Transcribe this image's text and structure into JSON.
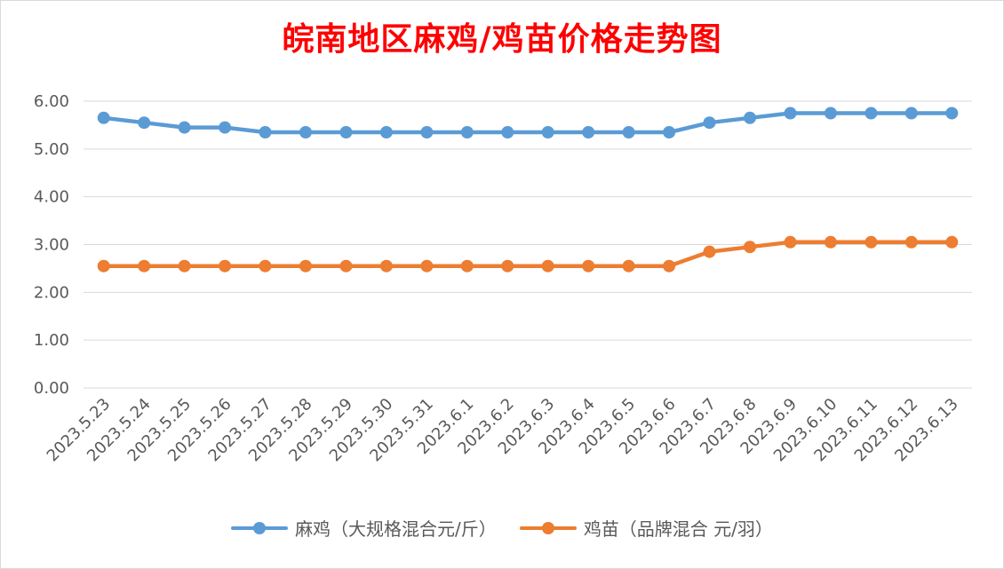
{
  "colors": {
    "series_1": "#5b9bd5",
    "series_2": "#ed7d31",
    "title": "#ff0000",
    "grid": "#d9d9d9",
    "text": "#595959"
  },
  "chart_data": {
    "type": "line",
    "title": "皖南地区麻鸡/鸡苗价格走势图",
    "xlabel": "",
    "ylabel": "",
    "ylim": [
      0,
      6
    ],
    "yticks": [
      "0.00",
      "1.00",
      "2.00",
      "3.00",
      "4.00",
      "5.00",
      "6.00"
    ],
    "grid": true,
    "legend_position": "bottom",
    "categories": [
      "2023.5.23",
      "2023.5.24",
      "2023.5.25",
      "2023.5.26",
      "2023.5.27",
      "2023.5.28",
      "2023.5.29",
      "2023.5.30",
      "2023.5.31",
      "2023.6.1",
      "2023.6.2",
      "2023.6.3",
      "2023.6.4",
      "2023.6.5",
      "2023.6.6",
      "2023.6.7",
      "2023.6.8",
      "2023.6.9",
      "2023.6.10",
      "2023.6.11",
      "2023.6.12",
      "2023.6.13"
    ],
    "series": [
      {
        "name": "麻鸡（大规格混合元/斤）",
        "values": [
          5.65,
          5.55,
          5.45,
          5.45,
          5.35,
          5.35,
          5.35,
          5.35,
          5.35,
          5.35,
          5.35,
          5.35,
          5.35,
          5.35,
          5.35,
          5.55,
          5.65,
          5.75,
          5.75,
          5.75,
          5.75,
          5.75
        ]
      },
      {
        "name": "鸡苗（品牌混合 元/羽）",
        "values": [
          2.55,
          2.55,
          2.55,
          2.55,
          2.55,
          2.55,
          2.55,
          2.55,
          2.55,
          2.55,
          2.55,
          2.55,
          2.55,
          2.55,
          2.55,
          2.85,
          2.95,
          3.05,
          3.05,
          3.05,
          3.05,
          3.05
        ]
      }
    ]
  }
}
